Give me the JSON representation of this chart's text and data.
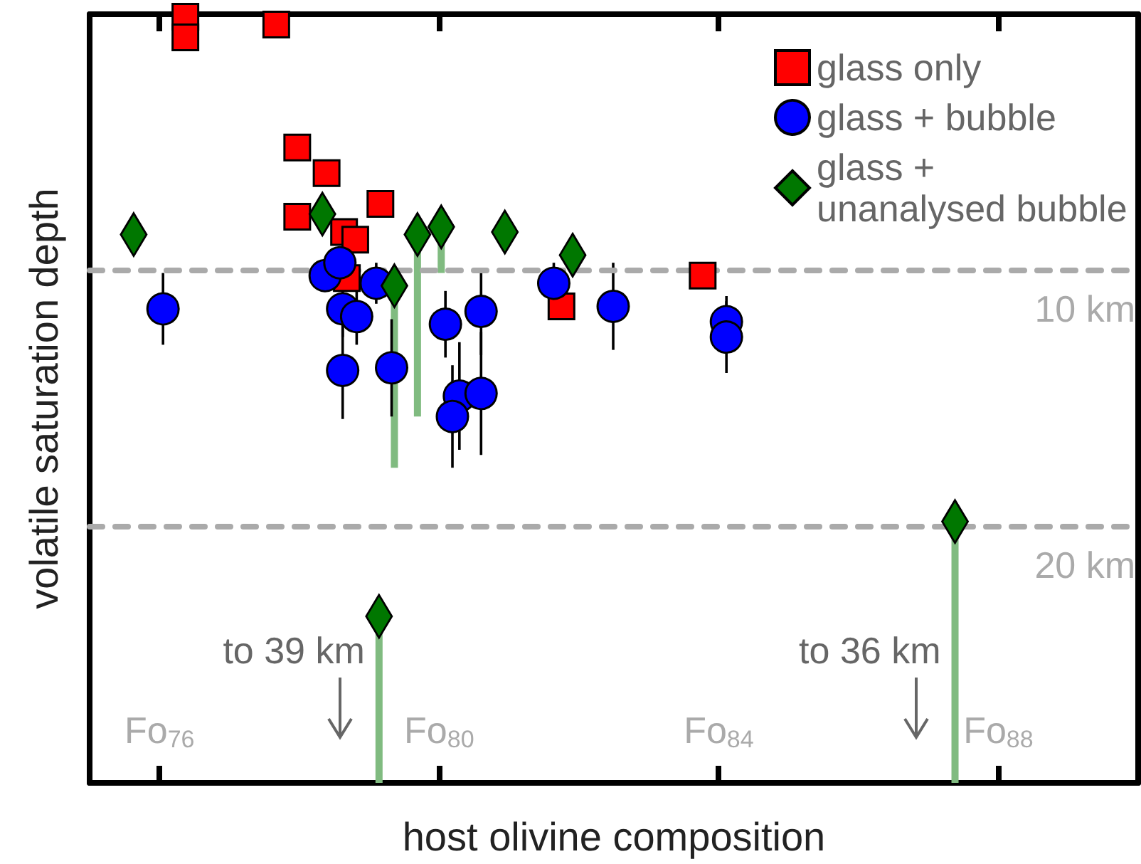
{
  "chart_data": {
    "type": "scatter",
    "xlabel": "host olivine composition",
    "ylabel": "volatile saturation depth",
    "xlim": [
      75,
      90
    ],
    "xticks": [
      {
        "value": 76,
        "label": "Fo$_{76}$"
      },
      {
        "value": 80,
        "label": "Fo$_{80}$"
      },
      {
        "value": 84,
        "label": "Fo$_{84}$"
      },
      {
        "value": 88,
        "label": "Fo$_{88}$"
      }
    ],
    "ylim": [
      30,
      0
    ],
    "tick_labels": "x",
    "grid": false,
    "legend": "top right",
    "series": [
      {
        "name": "glass only",
        "color": "#ff0000",
        "marker": "square",
        "x": [
          76.37,
          76.37,
          77.67,
          77.97,
          78.39,
          77.97,
          79.16,
          78.64,
          78.8,
          78.68,
          81.75,
          83.77
        ],
        "values": [
          0.1,
          0.9,
          0.4,
          5.2,
          6.2,
          7.9,
          7.4,
          8.5,
          8.8,
          10.3,
          11.4,
          10.2
        ]
      },
      {
        "name": "glass + bubble",
        "color": "#0000ff",
        "marker": "circle",
        "x": [
          76.05,
          78.37,
          78.58,
          78.62,
          78.82,
          78.62,
          79.1,
          79.32,
          80.09,
          80.6,
          80.29,
          80.19,
          80.6,
          81.64,
          82.49,
          84.11,
          84.11
        ],
        "values": [
          11.5,
          10.2,
          9.7,
          11.5,
          11.8,
          13.9,
          10.5,
          13.8,
          12.1,
          11.6,
          14.9,
          15.7,
          14.8,
          10.5,
          11.4,
          12.0,
          12.6
        ],
        "errors": [
          1.4,
          null,
          null,
          1.1,
          1.1,
          1.9,
          0.8,
          1.9,
          1.3,
          1.7,
          2.1,
          2.0,
          2.4,
          0.8,
          1.7,
          1.0,
          1.4
        ]
      },
      {
        "name": "glass + unanalysed bubble",
        "color": "#007700",
        "marker": "diamond",
        "x": [
          75.63,
          78.33,
          79.36,
          79.69,
          80.03,
          80.94,
          81.91,
          79.14,
          87.38
        ],
        "values": [
          8.6,
          7.8,
          10.6,
          8.6,
          8.3,
          8.5,
          9.4,
          23.5,
          19.8
        ],
        "errors": [
          null,
          null,
          [
            10.6,
            17.7
          ],
          [
            8.6,
            15.7
          ],
          [
            8.3,
            10.1
          ],
          null,
          null,
          [
            23.5,
            30
          ],
          [
            19.8,
            30
          ]
        ]
      }
    ],
    "ref_lines": [
      {
        "axis": "y",
        "value": 10,
        "label": "10 km",
        "color": "#aaaaaa",
        "line_style": "dashed"
      },
      {
        "axis": "y",
        "value": 20,
        "label": "20 km",
        "color": "#aaaaaa",
        "line_style": "dashed"
      }
    ],
    "annotations": [
      "to 39 km",
      "to 36 km"
    ]
  }
}
